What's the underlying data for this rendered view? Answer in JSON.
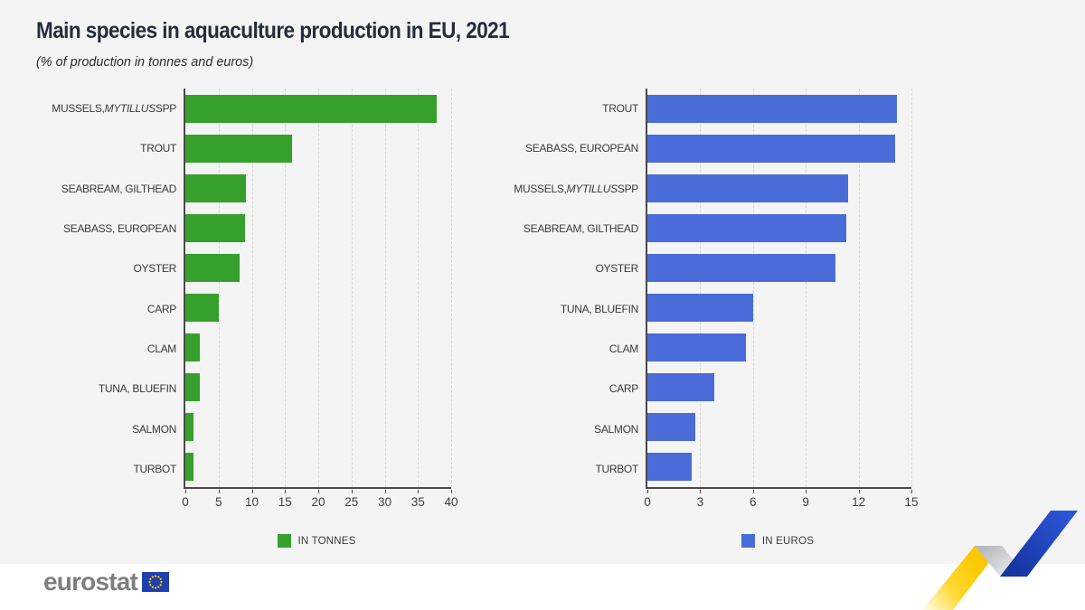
{
  "title": "Main species in aquaculture production in EU, 2021",
  "subtitle": "(% of production in tonnes and euros)",
  "colors": {
    "tonnes_green": "#36a02c",
    "euros_blue": "#4a6cd8",
    "background": "#f4f4f4",
    "title_text": "#252c3c",
    "eu_flag_blue": "#1e3fae",
    "eu_star_yellow": "#ffcc00"
  },
  "chart_data": [
    {
      "type": "bar",
      "orientation": "horizontal",
      "legend": "IN TONNES",
      "legend_position": "bottom",
      "color": "#36a02c",
      "grid": true,
      "xlim": [
        0,
        40
      ],
      "xticks": [
        0,
        5,
        10,
        15,
        20,
        25,
        30,
        35,
        40
      ],
      "xlabel": "",
      "ylabel": "",
      "categories": [
        "MUSSELS, MYTILLUS SPP",
        "TROUT",
        "SEABREAM, GILTHEAD",
        "SEABASS, EUROPEAN",
        "OYSTER",
        "CARP",
        "CLAM",
        "TUNA, BLUEFIN",
        "SALMON",
        "TURBOT"
      ],
      "italic_words": {
        "0": "MYTILLUS"
      },
      "values": [
        37.8,
        16.0,
        9.1,
        9.0,
        8.1,
        5.1,
        2.2,
        2.2,
        1.2,
        1.2
      ]
    },
    {
      "type": "bar",
      "orientation": "horizontal",
      "legend": "IN EUROS",
      "legend_position": "bottom",
      "color": "#4a6cd8",
      "grid": true,
      "xlim": [
        0,
        15
      ],
      "xticks": [
        0,
        3,
        6,
        9,
        12,
        15
      ],
      "xlabel": "",
      "ylabel": "",
      "categories": [
        "TROUT",
        "SEABASS, EUROPEAN",
        "MUSSELS, MYTILLUS SPP",
        "SEABREAM, GILTHEAD",
        "OYSTER",
        "TUNA, BLUEFIN",
        "CLAM",
        "CARP",
        "SALMON",
        "TURBOT"
      ],
      "italic_words": {
        "2": "MYTILLUS"
      },
      "values": [
        14.2,
        14.1,
        11.4,
        11.3,
        10.7,
        6.0,
        5.6,
        3.8,
        2.7,
        2.5
      ]
    }
  ],
  "footer": {
    "logo_text": "eurostat"
  }
}
